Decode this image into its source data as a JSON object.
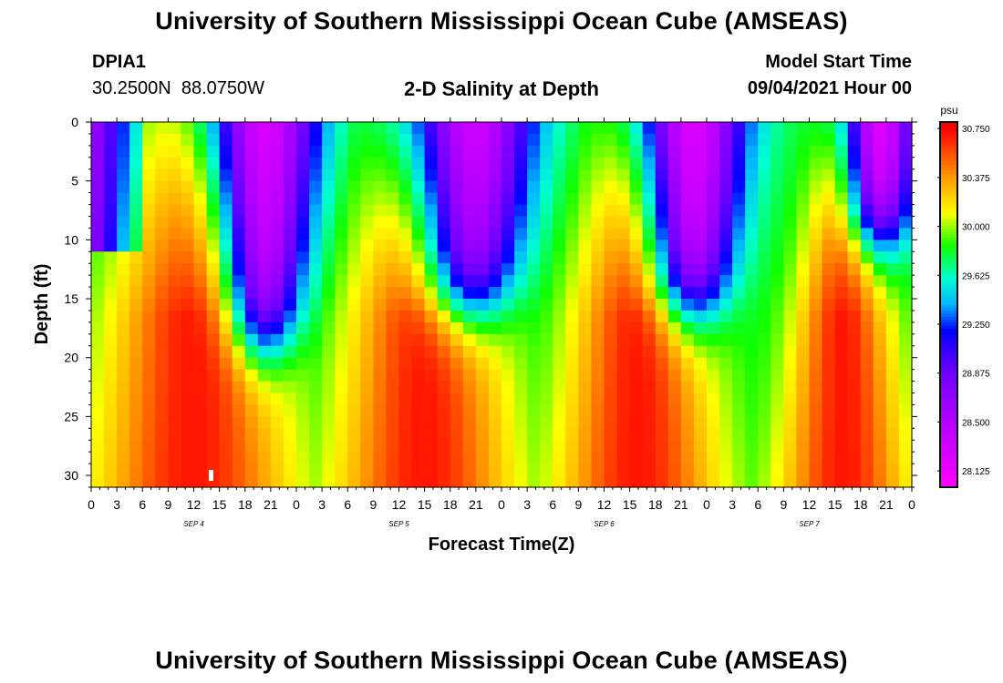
{
  "page": {
    "top_title": "University of Southern Mississippi Ocean Cube (AMSEAS)",
    "bottom_title": "University of Southern Mississippi Ocean Cube (AMSEAS)",
    "station_id": "DPIA1",
    "station_coords": "30.2500N  88.0750W",
    "plot_title": "2-D Salinity at Depth",
    "model_start_label": "Model Start Time",
    "model_start_value": "09/04/2021 Hour 00"
  },
  "chart_data": {
    "type": "heatmap",
    "title": "2-D Salinity at Depth",
    "xlabel": "Forecast Time(Z)",
    "ylabel": "Depth (ft)",
    "x_unit": "hours since 09/04/2021 00Z",
    "xlim": [
      0,
      96
    ],
    "ylim": [
      0,
      31
    ],
    "y_inverted": true,
    "x_ticks": [
      0,
      3,
      6,
      9,
      12,
      15,
      18,
      21,
      24,
      27,
      30,
      33,
      36,
      39,
      42,
      45,
      48,
      51,
      54,
      57,
      60,
      63,
      66,
      69,
      72,
      75,
      78,
      81,
      84,
      87,
      90,
      93,
      96
    ],
    "x_tick_labels": [
      "0",
      "3",
      "6",
      "9",
      "12",
      "15",
      "18",
      "21",
      "0",
      "3",
      "6",
      "9",
      "12",
      "15",
      "18",
      "21",
      "0",
      "3",
      "6",
      "9",
      "12",
      "15",
      "18",
      "21",
      "0",
      "3",
      "6",
      "9",
      "12",
      "15",
      "18",
      "21",
      "0"
    ],
    "y_ticks": [
      0,
      5,
      10,
      15,
      20,
      25,
      30
    ],
    "y_tick_labels": [
      "0",
      "5",
      "10",
      "15",
      "20",
      "25",
      "30"
    ],
    "day_labels": [
      {
        "hour": 12,
        "label": "SEP 4"
      },
      {
        "hour": 36,
        "label": "SEP 5"
      },
      {
        "hour": 60,
        "label": "SEP 6"
      },
      {
        "hour": 84,
        "label": "SEP 7"
      }
    ],
    "colorbar": {
      "unit": "psu",
      "min": 28.0,
      "max": 30.8,
      "tick_values": [
        30.75,
        30.375,
        30.0,
        29.625,
        29.25,
        28.875,
        28.5,
        28.125
      ],
      "tick_labels": [
        "30.750",
        "30.375",
        "30.000",
        "29.625",
        "29.250",
        "28.875",
        "28.500",
        "28.125"
      ],
      "stops": [
        {
          "v": 28.0,
          "color": "#ff00ff"
        },
        {
          "v": 28.5,
          "color": "#b400ff"
        },
        {
          "v": 28.9,
          "color": "#6a00ff"
        },
        {
          "v": 29.2,
          "color": "#0000ff"
        },
        {
          "v": 29.4,
          "color": "#00b4ff"
        },
        {
          "v": 29.6,
          "color": "#00ffd0"
        },
        {
          "v": 29.85,
          "color": "#10ff00"
        },
        {
          "v": 30.1,
          "color": "#ffff00"
        },
        {
          "v": 30.4,
          "color": "#ff9000"
        },
        {
          "v": 30.75,
          "color": "#ff0000"
        }
      ]
    },
    "salinity_features": {
      "surface_low_centers_hours": [
        20,
        44,
        70,
        92
      ],
      "saline_bottom_max_hours": [
        12,
        39,
        64,
        88
      ],
      "surface_min_psu": 28.1,
      "bottom_max_psu": 30.7
    }
  }
}
